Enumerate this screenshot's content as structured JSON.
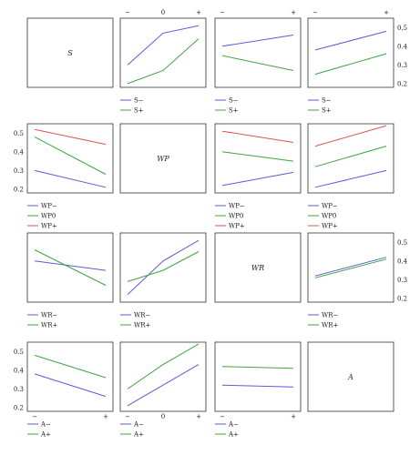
{
  "chart_data": {
    "type": "line",
    "layout": "4x4 interaction plot matrix",
    "x_ticks": [
      "−",
      "0",
      "+"
    ],
    "y_ticks": [
      "0.2",
      "0.3",
      "0.4",
      "0.5"
    ],
    "ylim": [
      0.18,
      0.55
    ],
    "factors": [
      {
        "id": "S",
        "label": "S",
        "level_labels": [
          "S−",
          "S+"
        ]
      },
      {
        "id": "WP",
        "label": "WP",
        "level_labels": [
          "WP−",
          "WP0",
          "WP+"
        ]
      },
      {
        "id": "WR",
        "label": "WR",
        "level_labels": [
          "WR−",
          "WR+"
        ]
      },
      {
        "id": "A",
        "label": "A",
        "level_labels": [
          "A−",
          "A+"
        ]
      }
    ],
    "colors": [
      "#5b5bd6",
      "#3fa43f",
      "#d9534f"
    ],
    "panels": [
      {
        "row": 0,
        "col": 1,
        "x": [
          -1,
          0,
          1
        ],
        "series": [
          {
            "name": "S−",
            "values": [
              0.3,
              0.47,
              0.51
            ]
          },
          {
            "name": "S+",
            "values": [
              0.2,
              0.27,
              0.44
            ]
          }
        ]
      },
      {
        "row": 0,
        "col": 2,
        "x": [
          -1,
          1
        ],
        "series": [
          {
            "name": "S−",
            "values": [
              0.4,
              0.46
            ]
          },
          {
            "name": "S+",
            "values": [
              0.35,
              0.27
            ]
          }
        ]
      },
      {
        "row": 0,
        "col": 3,
        "x": [
          -1,
          1
        ],
        "series": [
          {
            "name": "S−",
            "values": [
              0.38,
              0.48
            ]
          },
          {
            "name": "S+",
            "values": [
              0.25,
              0.36
            ]
          }
        ]
      },
      {
        "row": 1,
        "col": 0,
        "x": [
          -1,
          1
        ],
        "series": [
          {
            "name": "WP−",
            "values": [
              0.3,
              0.21
            ]
          },
          {
            "name": "WP0",
            "values": [
              0.48,
              0.28
            ]
          },
          {
            "name": "WP+",
            "values": [
              0.52,
              0.44
            ]
          }
        ]
      },
      {
        "row": 1,
        "col": 2,
        "x": [
          -1,
          1
        ],
        "series": [
          {
            "name": "WP−",
            "values": [
              0.22,
              0.29
            ]
          },
          {
            "name": "WP0",
            "values": [
              0.4,
              0.35
            ]
          },
          {
            "name": "WP+",
            "values": [
              0.51,
              0.45
            ]
          }
        ]
      },
      {
        "row": 1,
        "col": 3,
        "x": [
          -1,
          1
        ],
        "series": [
          {
            "name": "WP−",
            "values": [
              0.21,
              0.3
            ]
          },
          {
            "name": "WP0",
            "values": [
              0.32,
              0.43
            ]
          },
          {
            "name": "WP+",
            "values": [
              0.43,
              0.54
            ]
          }
        ]
      },
      {
        "row": 2,
        "col": 0,
        "x": [
          -1,
          1
        ],
        "series": [
          {
            "name": "WR−",
            "values": [
              0.4,
              0.35
            ]
          },
          {
            "name": "WR+",
            "values": [
              0.46,
              0.27
            ]
          }
        ]
      },
      {
        "row": 2,
        "col": 1,
        "x": [
          -1,
          0,
          1
        ],
        "series": [
          {
            "name": "WR−",
            "values": [
              0.22,
              0.4,
              0.51
            ]
          },
          {
            "name": "WR+",
            "values": [
              0.29,
              0.35,
              0.45
            ]
          }
        ]
      },
      {
        "row": 2,
        "col": 3,
        "x": [
          -1,
          1
        ],
        "series": [
          {
            "name": "WR−",
            "values": [
              0.32,
              0.42
            ]
          },
          {
            "name": "WR+",
            "values": [
              0.31,
              0.41
            ]
          }
        ]
      },
      {
        "row": 3,
        "col": 0,
        "x": [
          -1,
          1
        ],
        "series": [
          {
            "name": "A−",
            "values": [
              0.38,
              0.26
            ]
          },
          {
            "name": "A+",
            "values": [
              0.48,
              0.36
            ]
          }
        ]
      },
      {
        "row": 3,
        "col": 1,
        "x": [
          -1,
          0,
          1
        ],
        "series": [
          {
            "name": "A−",
            "values": [
              0.21,
              0.32,
              0.43
            ]
          },
          {
            "name": "A+",
            "values": [
              0.3,
              0.43,
              0.54
            ]
          }
        ]
      },
      {
        "row": 3,
        "col": 2,
        "x": [
          -1,
          1
        ],
        "series": [
          {
            "name": "A−",
            "values": [
              0.32,
              0.31
            ]
          },
          {
            "name": "A+",
            "values": [
              0.42,
              0.41
            ]
          }
        ]
      }
    ]
  }
}
